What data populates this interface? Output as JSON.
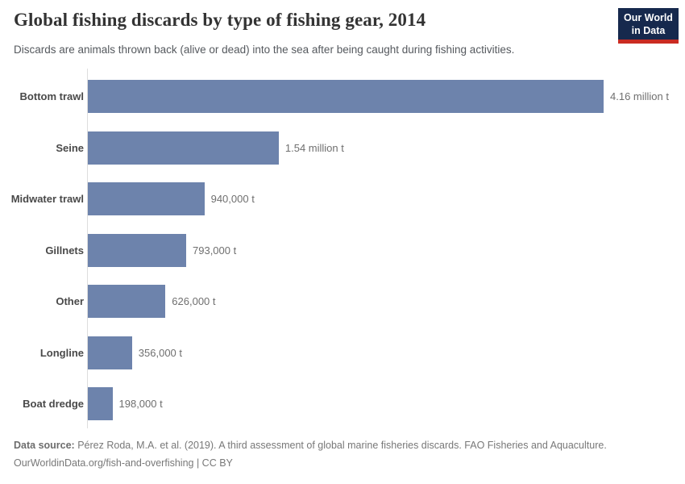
{
  "header": {
    "title": "Global fishing discards by type of fishing gear, 2014",
    "subtitle": "Discards are animals thrown back (alive or dead) into the sea after being caught during fishing activities.",
    "logo": {
      "line1": "Our World",
      "line2": "in Data",
      "bg_color": "#16294d",
      "accent_color": "#ca2b22"
    }
  },
  "chart_data": {
    "type": "bar",
    "orientation": "horizontal",
    "title": "Global fishing discards by type of fishing gear, 2014",
    "categories": [
      "Bottom trawl",
      "Seine",
      "Midwater trawl",
      "Gillnets",
      "Other",
      "Longline",
      "Boat dredge"
    ],
    "values": [
      4160000,
      1540000,
      940000,
      793000,
      626000,
      356000,
      198000
    ],
    "value_labels": [
      "4.16 million t",
      "1.54 million t",
      "940,000 t",
      "793,000 t",
      "626,000 t",
      "356,000 t",
      "198,000 t"
    ],
    "unit": "tonnes",
    "xlim": [
      0,
      4160000
    ],
    "grid": false,
    "legend": "none",
    "bar_color": "#6d83ac",
    "axis_line_color": "#dedede"
  },
  "footer": {
    "datasource_label": "Data source:",
    "datasource_text": "Pérez Roda, M.A. et al. (2019). A third assessment of global marine fisheries discards. FAO Fisheries and Aquaculture.",
    "link_line": "OurWorldinData.org/fish-and-overfishing | CC BY"
  }
}
